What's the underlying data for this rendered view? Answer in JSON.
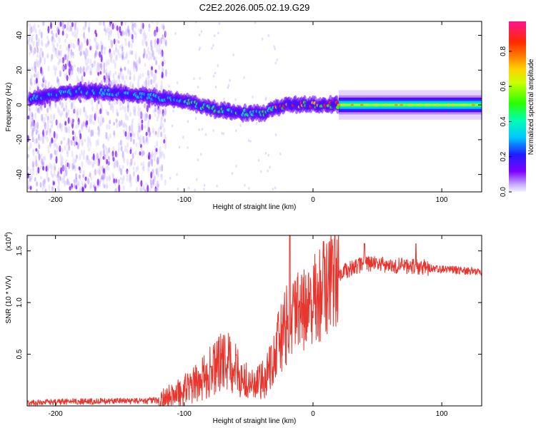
{
  "title": "C2E2.2026.005.02.19.G29",
  "chart_data": [
    {
      "type": "heatmap",
      "name": "spectrogram",
      "xlabel": "Height of straight line (km)",
      "ylabel": "Frequency (Hz)",
      "xlim": [
        -222,
        131
      ],
      "ylim": [
        -50,
        48
      ],
      "xticks": [
        -200,
        -100,
        0,
        100
      ],
      "yticks": [
        -40,
        -20,
        0,
        20,
        40
      ],
      "colorbar": {
        "label": "Normalized spectral amplitude",
        "range": [
          0,
          0.97
        ],
        "ticks": [
          0.0,
          0.2,
          0.4,
          0.6,
          0.8
        ]
      },
      "ridge": [
        {
          "x": -220,
          "y": 4
        },
        {
          "x": -200,
          "y": 6
        },
        {
          "x": -180,
          "y": 8
        },
        {
          "x": -160,
          "y": 7
        },
        {
          "x": -140,
          "y": 6
        },
        {
          "x": -120,
          "y": 4
        },
        {
          "x": -100,
          "y": 2
        },
        {
          "x": -80,
          "y": -2
        },
        {
          "x": -60,
          "y": -4
        },
        {
          "x": -40,
          "y": -5
        },
        {
          "x": -20,
          "y": 0
        },
        {
          "x": 0,
          "y": 0
        },
        {
          "x": 50,
          "y": 0
        },
        {
          "x": 131,
          "y": 0
        }
      ]
    },
    {
      "type": "line",
      "name": "snr",
      "xlabel": "Height of straight line (km)",
      "ylabel": "SNR (10 * V/V)",
      "scale_label": "(x10",
      "scale_exponent": "4",
      "scale_close": ")",
      "xlim": [
        -222,
        131
      ],
      "ylim": [
        0,
        1.65
      ],
      "xticks": [
        -200,
        -100,
        0,
        100
      ],
      "yticks": [
        0.5,
        1.0,
        1.5
      ],
      "color": "#e8352e",
      "envelope": [
        {
          "x": -222,
          "y": 0.03
        },
        {
          "x": -150,
          "y": 0.05
        },
        {
          "x": -120,
          "y": 0.05
        },
        {
          "x": -105,
          "y": 0.12
        },
        {
          "x": -90,
          "y": 0.22
        },
        {
          "x": -80,
          "y": 0.33
        },
        {
          "x": -68,
          "y": 0.45
        },
        {
          "x": -60,
          "y": 0.35
        },
        {
          "x": -50,
          "y": 0.2
        },
        {
          "x": -40,
          "y": 0.22
        },
        {
          "x": -30,
          "y": 0.5
        },
        {
          "x": -20,
          "y": 0.8
        },
        {
          "x": -10,
          "y": 0.9
        },
        {
          "x": 0,
          "y": 1.0
        },
        {
          "x": 10,
          "y": 1.15
        },
        {
          "x": 20,
          "y": 1.28
        },
        {
          "x": 40,
          "y": 1.38
        },
        {
          "x": 60,
          "y": 1.36
        },
        {
          "x": 80,
          "y": 1.35
        },
        {
          "x": 100,
          "y": 1.32
        },
        {
          "x": 131,
          "y": 1.3
        }
      ],
      "spikes": [
        {
          "x": -18,
          "y": 1.65
        },
        {
          "x": 40,
          "y": 1.57
        },
        {
          "x": 80,
          "y": 1.57
        }
      ]
    }
  ]
}
